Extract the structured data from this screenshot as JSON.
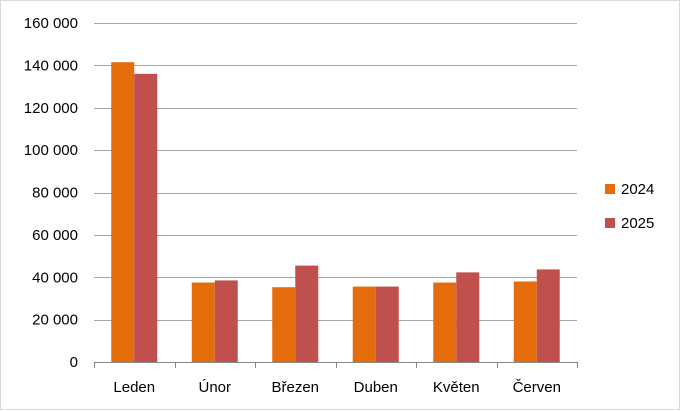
{
  "chart_data": {
    "type": "bar",
    "title": "",
    "xlabel": "",
    "ylabel": "",
    "categories": [
      "Leden",
      "Únor",
      "Březen",
      "Duben",
      "Květen",
      "Červen"
    ],
    "series": [
      {
        "name": "2024",
        "color": "#E46C0A",
        "values": [
          141500,
          37500,
          35300,
          35600,
          37500,
          38000
        ]
      },
      {
        "name": "2025",
        "color": "#C0504D",
        "values": [
          136000,
          38500,
          45500,
          35600,
          42300,
          43700
        ]
      }
    ],
    "ylim": [
      0,
      160000
    ],
    "yticks": [
      0,
      20000,
      40000,
      60000,
      80000,
      100000,
      120000,
      140000,
      160000
    ],
    "ytick_labels": [
      "0",
      "20 000",
      "40 000",
      "60 000",
      "80 000",
      "100 000",
      "120 000",
      "140 000",
      "160 000"
    ],
    "grid": true,
    "legend_position": "right",
    "colors": {
      "gridline": "#A6A6A6",
      "axis": "#868686",
      "border": "#D9D9D9"
    }
  }
}
